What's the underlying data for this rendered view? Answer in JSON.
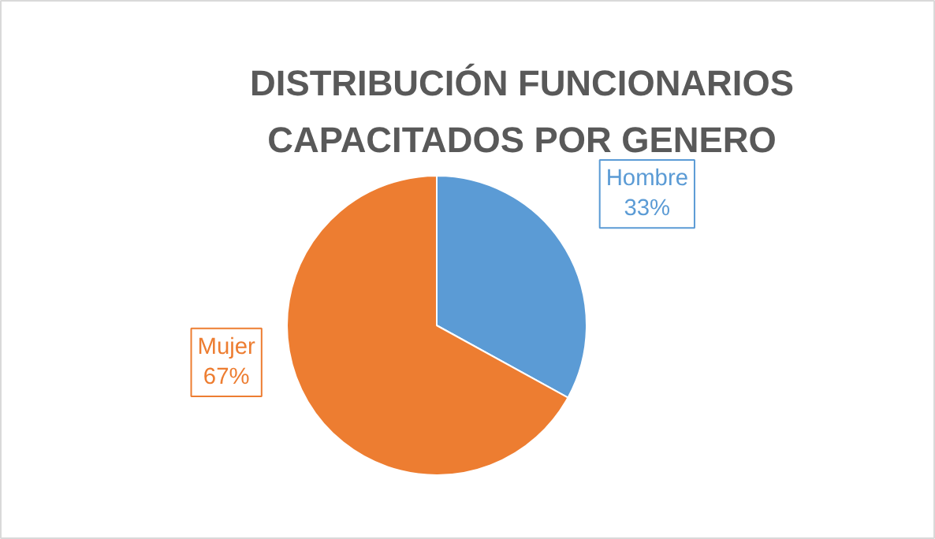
{
  "chart_data": {
    "type": "pie",
    "title": "DISTRIBUCIÓN FUNCIONARIOS\nCAPACITADOS POR GENERO",
    "categories": [
      "Hombre",
      "Mujer"
    ],
    "values": [
      33,
      67
    ],
    "colors": [
      "#5b9bd5",
      "#ed7d31"
    ],
    "value_labels": [
      "33%",
      "67%"
    ]
  }
}
